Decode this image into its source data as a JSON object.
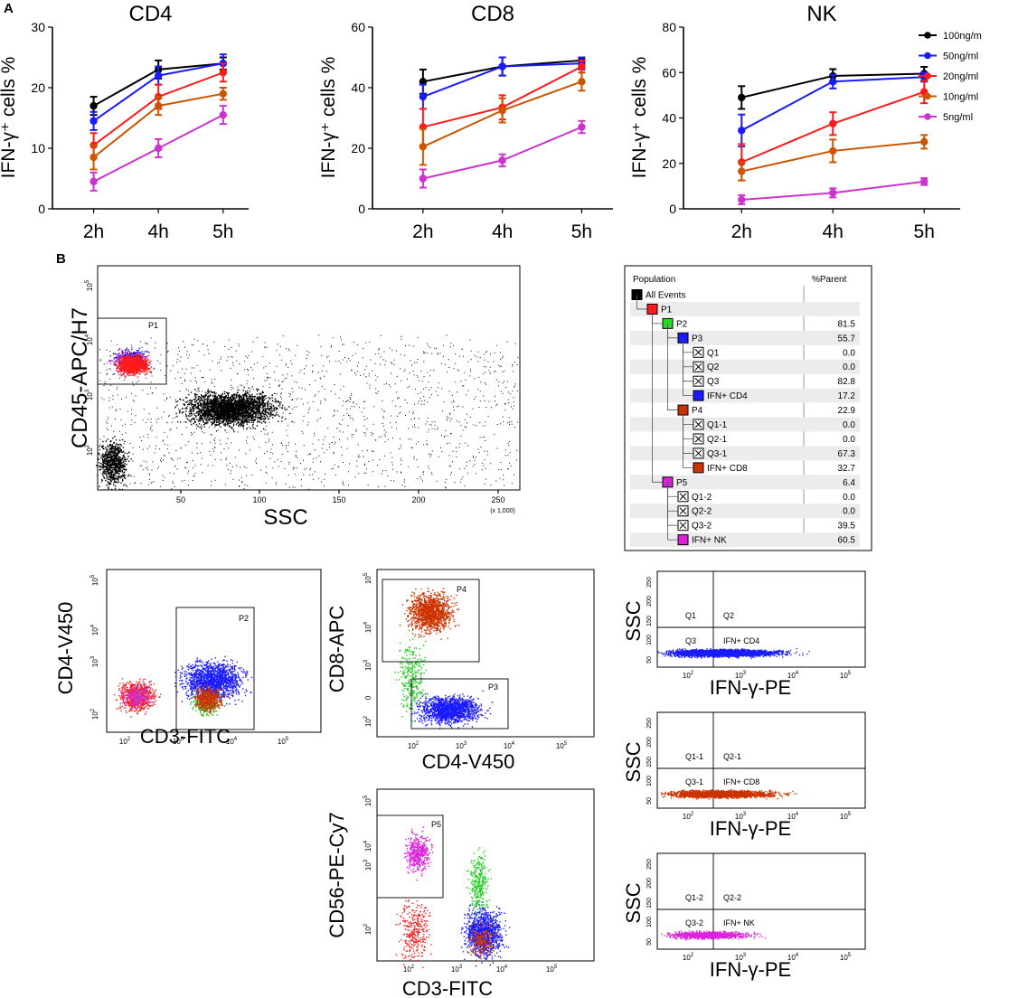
{
  "panel_labels": {
    "a": "A",
    "b": "B"
  },
  "chart_data": [
    {
      "type": "line",
      "title": "CD4",
      "ylabel": "IFN-γ⁺ cells %",
      "categories": [
        "2h",
        "4h",
        "5h"
      ],
      "ylim": [
        0,
        30
      ],
      "yticks": [
        0,
        10,
        20,
        30
      ],
      "series": [
        {
          "name": "100ng/m",
          "color": "#000000",
          "values": [
            17,
            23,
            24
          ],
          "errors": [
            1.5,
            1.5,
            1.0
          ]
        },
        {
          "name": "50ng/ml",
          "color": "#1a1aff",
          "values": [
            14.5,
            22,
            24
          ],
          "errors": [
            1.5,
            1.5,
            1.5
          ]
        },
        {
          "name": "20ng/ml",
          "color": "#ff1a1a",
          "values": [
            10.5,
            18.5,
            22.5
          ],
          "errors": [
            2.0,
            2.0,
            1.5
          ]
        },
        {
          "name": "10ng/ml",
          "color": "#cc5500",
          "values": [
            8.5,
            17,
            19
          ],
          "errors": [
            2.0,
            1.5,
            1.0
          ]
        },
        {
          "name": "5ng/ml",
          "color": "#cc33cc",
          "values": [
            4.5,
            10,
            15.5
          ],
          "errors": [
            1.5,
            1.5,
            1.5
          ]
        }
      ]
    },
    {
      "type": "line",
      "title": "CD8",
      "ylabel": "IFN-γ⁺ cells %",
      "categories": [
        "2h",
        "4h",
        "5h"
      ],
      "ylim": [
        0,
        60
      ],
      "yticks": [
        0,
        20,
        40,
        60
      ],
      "series": [
        {
          "name": "100ng/m",
          "color": "#000000",
          "values": [
            42,
            47,
            49
          ],
          "errors": [
            4,
            3,
            1
          ]
        },
        {
          "name": "50ng/ml",
          "color": "#1a1aff",
          "values": [
            37,
            47,
            48
          ],
          "errors": [
            4,
            3,
            2
          ]
        },
        {
          "name": "20ng/ml",
          "color": "#ff1a1a",
          "values": [
            27,
            33.5,
            47
          ],
          "errors": [
            6,
            4,
            2
          ]
        },
        {
          "name": "10ng/ml",
          "color": "#cc5500",
          "values": [
            20.5,
            32.5,
            42
          ],
          "errors": [
            6,
            4,
            3
          ]
        },
        {
          "name": "5ng/ml",
          "color": "#cc33cc",
          "values": [
            10,
            16,
            27
          ],
          "errors": [
            3,
            2,
            2
          ]
        }
      ]
    },
    {
      "type": "line",
      "title": "NK",
      "ylabel": "IFN-γ⁺ cells %",
      "categories": [
        "2h",
        "4h",
        "5h"
      ],
      "ylim": [
        0,
        80
      ],
      "yticks": [
        0,
        20,
        40,
        60,
        80
      ],
      "series": [
        {
          "name": "100ng/m",
          "color": "#000000",
          "values": [
            49,
            58.5,
            59.5
          ],
          "errors": [
            5,
            3,
            3
          ]
        },
        {
          "name": "50ng/ml",
          "color": "#1a1aff",
          "values": [
            34.5,
            56,
            58
          ],
          "errors": [
            7,
            3,
            2
          ]
        },
        {
          "name": "20ng/ml",
          "color": "#ff1a1a",
          "values": [
            20.5,
            37.5,
            51.5
          ],
          "errors": [
            8,
            5,
            5
          ]
        },
        {
          "name": "10ng/ml",
          "color": "#cc5500",
          "values": [
            16.5,
            25.5,
            29.5
          ],
          "errors": [
            4,
            5,
            3
          ]
        },
        {
          "name": "5ng/ml",
          "color": "#cc33cc",
          "values": [
            4,
            7,
            12
          ],
          "errors": [
            2,
            2,
            1.5
          ]
        }
      ]
    }
  ],
  "legend": [
    {
      "label": "100ng/m",
      "color": "#000000"
    },
    {
      "label": "50ng/ml",
      "color": "#1a1aff"
    },
    {
      "label": "20ng/ml",
      "color": "#ff1a1a"
    },
    {
      "label": "10ng/ml",
      "color": "#cc5500"
    },
    {
      "label": "5ng/ml",
      "color": "#cc33cc"
    }
  ],
  "flow_plots": {
    "ssc_plot": {
      "ylabel": "CD45-APC/H7",
      "xlabel": "SSC",
      "x_ticks": [
        "50",
        "100",
        "150",
        "200",
        "250"
      ],
      "x_unit": "(x 1,000)",
      "gate": "P1"
    },
    "cd3_cd4": {
      "ylabel": "CD4-V450",
      "xlabel": "CD3-FITC",
      "gate": "P2"
    },
    "cd4_cd8": {
      "ylabel": "CD8-APC",
      "xlabel": "CD4-V450",
      "gates": [
        "P4",
        "P3"
      ],
      "y_tick": "0"
    },
    "cd3_cd56": {
      "ylabel": "CD56-PE-Cy7",
      "xlabel": "CD3-FITC",
      "gate": "P5"
    },
    "ifn_cd4": {
      "ylabel": "SSC",
      "xlabel": "IFN-γ-PE",
      "quadrants": [
        "Q1",
        "Q2",
        "Q3",
        "IFN+ CD4"
      ]
    },
    "ifn_cd8": {
      "ylabel": "SSC",
      "xlabel": "IFN-γ-PE",
      "quadrants": [
        "Q1-1",
        "Q2-1",
        "Q3-1",
        "IFN+ CD8"
      ]
    },
    "ifn_nk": {
      "ylabel": "SSC",
      "xlabel": "IFN-γ-PE",
      "quadrants": [
        "Q1-2",
        "Q2-2",
        "Q3-2",
        "IFN+ NK"
      ]
    }
  },
  "ssc_axis_ticks": [
    "50",
    "100",
    "150",
    "200",
    "250"
  ],
  "log_ticks": {
    "base": "10",
    "exponents": [
      "2",
      "3",
      "4",
      "5"
    ]
  },
  "population_table": {
    "headers": [
      "Population",
      "%Parent"
    ],
    "rows": [
      {
        "name": "All Events",
        "value": "",
        "color": "#000000",
        "level": 0,
        "kind": "color"
      },
      {
        "name": "P1",
        "value": "",
        "color": "#ff1a1a",
        "level": 1,
        "kind": "color"
      },
      {
        "name": "P2",
        "value": "81.5",
        "color": "#22dd22",
        "level": 2,
        "kind": "color"
      },
      {
        "name": "P3",
        "value": "55.7",
        "color": "#1a1aff",
        "level": 3,
        "kind": "color"
      },
      {
        "name": "Q1",
        "value": "0.0",
        "color": "",
        "level": 4,
        "kind": "x"
      },
      {
        "name": "Q2",
        "value": "0.0",
        "color": "",
        "level": 4,
        "kind": "x"
      },
      {
        "name": "Q3",
        "value": "82.8",
        "color": "",
        "level": 4,
        "kind": "x"
      },
      {
        "name": "IFN+ CD4",
        "value": "17.2",
        "color": "#1a1aff",
        "level": 4,
        "kind": "color"
      },
      {
        "name": "P4",
        "value": "22.9",
        "color": "#cc3300",
        "level": 3,
        "kind": "color"
      },
      {
        "name": "Q1-1",
        "value": "0.0",
        "color": "",
        "level": 4,
        "kind": "x"
      },
      {
        "name": "Q2-1",
        "value": "0.0",
        "color": "",
        "level": 4,
        "kind": "x"
      },
      {
        "name": "Q3-1",
        "value": "67.3",
        "color": "",
        "level": 4,
        "kind": "x"
      },
      {
        "name": "IFN+ CD8",
        "value": "32.7",
        "color": "#cc3300",
        "level": 4,
        "kind": "color"
      },
      {
        "name": "P5",
        "value": "6.4",
        "color": "#dd22dd",
        "level": 2,
        "kind": "color"
      },
      {
        "name": "Q1-2",
        "value": "0.0",
        "color": "",
        "level": 3,
        "kind": "x"
      },
      {
        "name": "Q2-2",
        "value": "0.0",
        "color": "",
        "level": 3,
        "kind": "x"
      },
      {
        "name": "Q3-2",
        "value": "39.5",
        "color": "",
        "level": 3,
        "kind": "x"
      },
      {
        "name": "IFN+ NK",
        "value": "60.5",
        "color": "#dd22dd",
        "level": 3,
        "kind": "color"
      }
    ]
  }
}
